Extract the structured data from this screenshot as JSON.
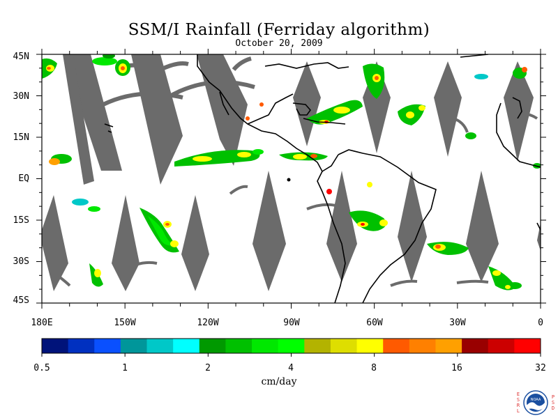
{
  "header": {
    "title": "SSM/I Rainfall (Ferriday algorithm)",
    "date": "October 20, 2009"
  },
  "map": {
    "lat_labels": [
      "45N",
      "30N",
      "15N",
      "EQ",
      "15S",
      "30S",
      "45S"
    ],
    "lon_labels": [
      "180E",
      "150W",
      "120W",
      "90W",
      "60W",
      "30W",
      "0"
    ],
    "lat_range": [
      -45,
      45
    ],
    "lon_range": [
      -180,
      0
    ],
    "colors": {
      "land_outline": "#000000",
      "no_data": "#6b6b6b",
      "background": "#ffffff"
    }
  },
  "colorbar": {
    "units": "cm/day",
    "tick_labels": [
      "0.5",
      "1",
      "2",
      "4",
      "8",
      "16",
      "32"
    ],
    "colors": [
      "#00137a",
      "#0030c0",
      "#0a50ff",
      "#00969a",
      "#00c8c8",
      "#00ffff",
      "#009900",
      "#00c000",
      "#00e800",
      "#00ff00",
      "#b3b300",
      "#dede00",
      "#ffff00",
      "#ff5a00",
      "#ff8000",
      "#ffa000",
      "#990000",
      "#cc0000",
      "#ff0000"
    ]
  },
  "logo": {
    "name": "noaa-logo",
    "left_letters": [
      "E",
      "S",
      "R",
      "L"
    ],
    "right_letters": [
      "P",
      "S",
      "D"
    ],
    "center_text": "NOAA"
  }
}
